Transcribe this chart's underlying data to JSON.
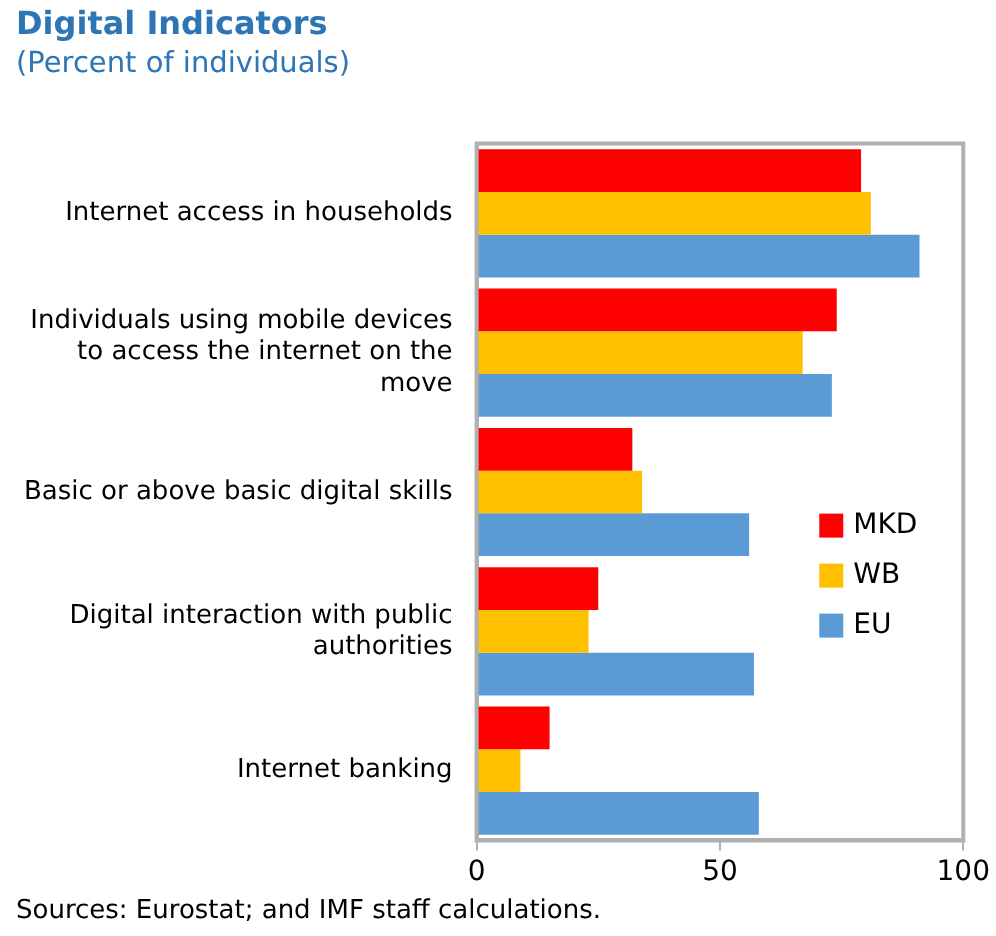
{
  "chart_data": {
    "type": "bar",
    "orientation": "horizontal",
    "title": "Digital Indicators",
    "subtitle": "(Percent of individuals)",
    "categories": [
      "Internet access in households",
      "Individuals using mobile devices to access the internet on the move",
      "Basic or above basic digital skills",
      "Digital interaction with public authorities",
      "Internet banking"
    ],
    "series": [
      {
        "name": "MKD",
        "color": "#ff0000",
        "values": [
          79,
          74,
          32,
          25,
          15
        ]
      },
      {
        "name": "WB",
        "color": "#ffc000",
        "values": [
          81,
          67,
          34,
          23,
          9
        ]
      },
      {
        "name": "EU",
        "color": "#5b9bd5",
        "values": [
          91,
          73,
          56,
          57,
          58
        ]
      }
    ],
    "xlim": [
      0,
      100
    ],
    "xticks": [
      0,
      50,
      100
    ],
    "grid": false,
    "legend": "right",
    "annotations": [
      "Sources: Eurostat; and IMF staff calculations."
    ]
  }
}
